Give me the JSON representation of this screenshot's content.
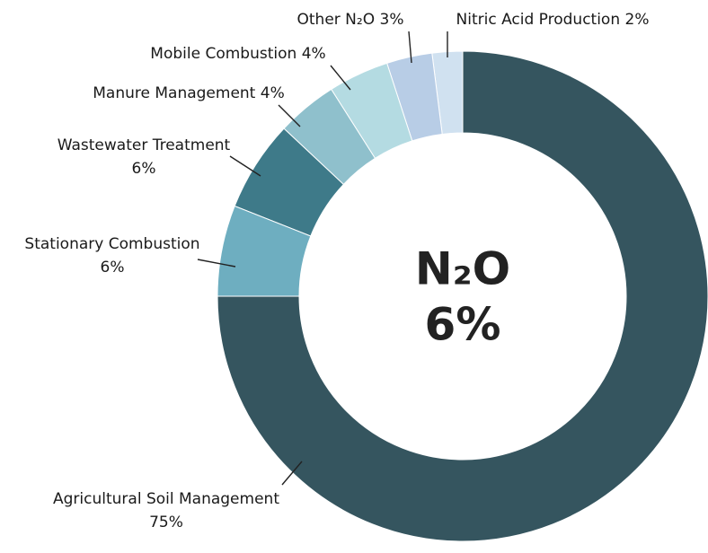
{
  "chart_data": {
    "type": "donut",
    "categories": [
      "Agricultural Soil Management",
      "Stationary Combustion",
      "Wastewater Treatment",
      "Manure Management",
      "Mobile Combustion",
      "Other N₂O",
      "Nitric Acid Production"
    ],
    "values": [
      75,
      6,
      6,
      4,
      4,
      3,
      2
    ],
    "value_labels": [
      "75%",
      "6%",
      "6%",
      "4%",
      "4%",
      "3%",
      "2%"
    ],
    "colors": [
      "#35555f",
      "#6eaec0",
      "#3e7a89",
      "#8fc0cc",
      "#b4dbe2",
      "#b8cde6",
      "#d0e1f0"
    ],
    "center_title": "N₂O",
    "center_value": "6%"
  }
}
